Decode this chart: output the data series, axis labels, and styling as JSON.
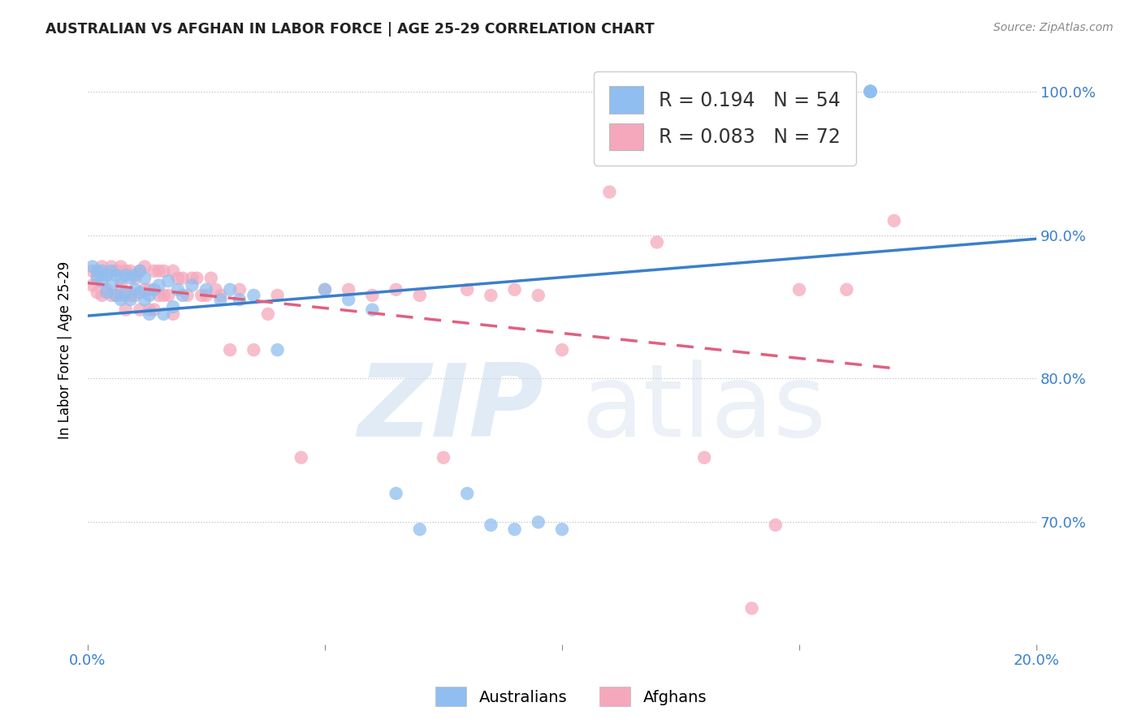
{
  "title": "AUSTRALIAN VS AFGHAN IN LABOR FORCE | AGE 25-29 CORRELATION CHART",
  "source": "Source: ZipAtlas.com",
  "ylabel": "In Labor Force | Age 25-29",
  "xlim": [
    0.0,
    0.2
  ],
  "ylim": [
    0.615,
    1.025
  ],
  "xtick_vals": [
    0.0,
    0.05,
    0.1,
    0.15,
    0.2
  ],
  "xtick_labels": [
    "0.0%",
    "",
    "",
    "",
    "20.0%"
  ],
  "ytick_vals": [
    0.7,
    0.8,
    0.9,
    1.0
  ],
  "ytick_labels": [
    "70.0%",
    "80.0%",
    "90.0%",
    "100.0%"
  ],
  "aus_R": 0.194,
  "aus_N": 54,
  "afg_R": 0.083,
  "afg_N": 72,
  "aus_color": "#90BEF0",
  "afg_color": "#F5A8BC",
  "aus_line_color": "#3A7FCC",
  "afg_line_color": "#E06080",
  "aus_scatter_x": [
    0.001,
    0.002,
    0.002,
    0.003,
    0.003,
    0.004,
    0.004,
    0.005,
    0.005,
    0.006,
    0.006,
    0.007,
    0.007,
    0.008,
    0.008,
    0.009,
    0.009,
    0.01,
    0.01,
    0.011,
    0.011,
    0.012,
    0.012,
    0.013,
    0.013,
    0.014,
    0.015,
    0.016,
    0.017,
    0.018,
    0.019,
    0.02,
    0.022,
    0.025,
    0.028,
    0.03,
    0.032,
    0.035,
    0.04,
    0.05,
    0.055,
    0.06,
    0.065,
    0.07,
    0.08,
    0.085,
    0.09,
    0.095,
    0.1,
    0.165,
    0.165,
    0.165,
    0.165,
    0.165
  ],
  "aus_scatter_y": [
    0.878,
    0.875,
    0.87,
    0.875,
    0.868,
    0.872,
    0.86,
    0.875,
    0.865,
    0.872,
    0.858,
    0.87,
    0.855,
    0.872,
    0.86,
    0.87,
    0.855,
    0.872,
    0.862,
    0.875,
    0.86,
    0.855,
    0.87,
    0.858,
    0.845,
    0.862,
    0.865,
    0.845,
    0.868,
    0.85,
    0.862,
    0.858,
    0.865,
    0.862,
    0.855,
    0.862,
    0.855,
    0.858,
    0.82,
    0.862,
    0.855,
    0.848,
    0.72,
    0.695,
    0.72,
    0.698,
    0.695,
    0.7,
    0.695,
    1.0,
    1.0,
    1.0,
    1.0,
    1.0
  ],
  "afg_scatter_x": [
    0.001,
    0.001,
    0.002,
    0.002,
    0.003,
    0.003,
    0.004,
    0.004,
    0.005,
    0.005,
    0.006,
    0.006,
    0.007,
    0.007,
    0.007,
    0.008,
    0.008,
    0.008,
    0.009,
    0.009,
    0.01,
    0.01,
    0.011,
    0.011,
    0.012,
    0.012,
    0.013,
    0.013,
    0.014,
    0.014,
    0.015,
    0.015,
    0.016,
    0.016,
    0.017,
    0.018,
    0.018,
    0.019,
    0.02,
    0.021,
    0.022,
    0.023,
    0.024,
    0.025,
    0.026,
    0.027,
    0.028,
    0.03,
    0.032,
    0.035,
    0.038,
    0.04,
    0.045,
    0.05,
    0.055,
    0.06,
    0.065,
    0.07,
    0.075,
    0.08,
    0.085,
    0.09,
    0.095,
    0.1,
    0.11,
    0.12,
    0.13,
    0.14,
    0.145,
    0.15,
    0.16,
    0.17
  ],
  "afg_scatter_y": [
    0.875,
    0.865,
    0.872,
    0.86,
    0.878,
    0.858,
    0.872,
    0.862,
    0.878,
    0.858,
    0.875,
    0.858,
    0.878,
    0.865,
    0.858,
    0.875,
    0.858,
    0.848,
    0.875,
    0.858,
    0.87,
    0.858,
    0.875,
    0.848,
    0.878,
    0.862,
    0.862,
    0.848,
    0.875,
    0.848,
    0.875,
    0.858,
    0.875,
    0.858,
    0.858,
    0.875,
    0.845,
    0.87,
    0.87,
    0.858,
    0.87,
    0.87,
    0.858,
    0.858,
    0.87,
    0.862,
    0.858,
    0.82,
    0.862,
    0.82,
    0.845,
    0.858,
    0.745,
    0.862,
    0.862,
    0.858,
    0.862,
    0.858,
    0.745,
    0.862,
    0.858,
    0.862,
    0.858,
    0.82,
    0.93,
    0.895,
    0.745,
    0.64,
    0.698,
    0.862,
    0.862,
    0.91
  ],
  "afg_line_x0": 0.0,
  "afg_line_x1": 0.17,
  "aus_line_x0": 0.0,
  "aus_line_x1": 0.2
}
